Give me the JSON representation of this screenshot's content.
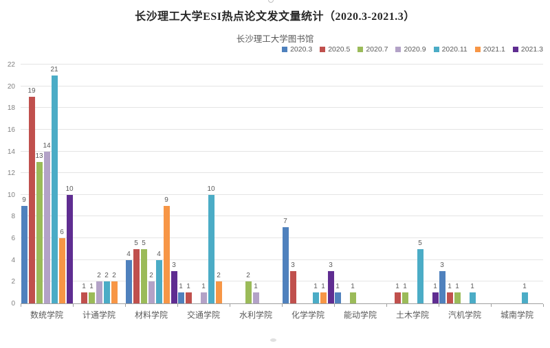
{
  "header": {
    "title": "长沙理工大学ESI热点论文发文量统计（2020.3-2021.3）",
    "subtitle": "长沙理工大学图书馆"
  },
  "chart_data": {
    "type": "bar",
    "title": "长沙理工大学ESI热点论文发文量统计（2020.3-2021.3）",
    "subtitle": "长沙理工大学图书馆",
    "categories": [
      "数统学院",
      "计通学院",
      "材料学院",
      "交通学院",
      "水利学院",
      "化学学院",
      "能动学院",
      "土木学院",
      "汽机学院",
      "城南学院"
    ],
    "series": [
      {
        "name": "2020.3",
        "color": "#4F81BD",
        "values": [
          9,
          0,
          4,
          1,
          0,
          7,
          1,
          0,
          3,
          0
        ]
      },
      {
        "name": "2020.5",
        "color": "#C0504D",
        "values": [
          19,
          1,
          5,
          1,
          0,
          3,
          0,
          1,
          1,
          0
        ]
      },
      {
        "name": "2020.7",
        "color": "#9BBB59",
        "values": [
          13,
          1,
          5,
          0,
          2,
          0,
          1,
          1,
          1,
          0
        ]
      },
      {
        "name": "2020.9",
        "color": "#B3A2C7",
        "values": [
          14,
          2,
          2,
          1,
          1,
          0,
          0,
          0,
          0,
          0
        ]
      },
      {
        "name": "2020.11",
        "color": "#4BACC6",
        "values": [
          21,
          2,
          4,
          10,
          0,
          1,
          0,
          5,
          1,
          1
        ]
      },
      {
        "name": "2021.1",
        "color": "#F79646",
        "values": [
          6,
          2,
          9,
          2,
          0,
          1,
          0,
          0,
          0,
          0
        ]
      },
      {
        "name": "2021.3",
        "color": "#5F2D91",
        "values": [
          10,
          0,
          3,
          0,
          0,
          3,
          0,
          1,
          0,
          0
        ]
      }
    ],
    "xlabel": "",
    "ylabel": "",
    "ylim": [
      0,
      22
    ],
    "ytick_step": 2,
    "grid": true,
    "legend_position": "top-right",
    "value_labels": true
  }
}
